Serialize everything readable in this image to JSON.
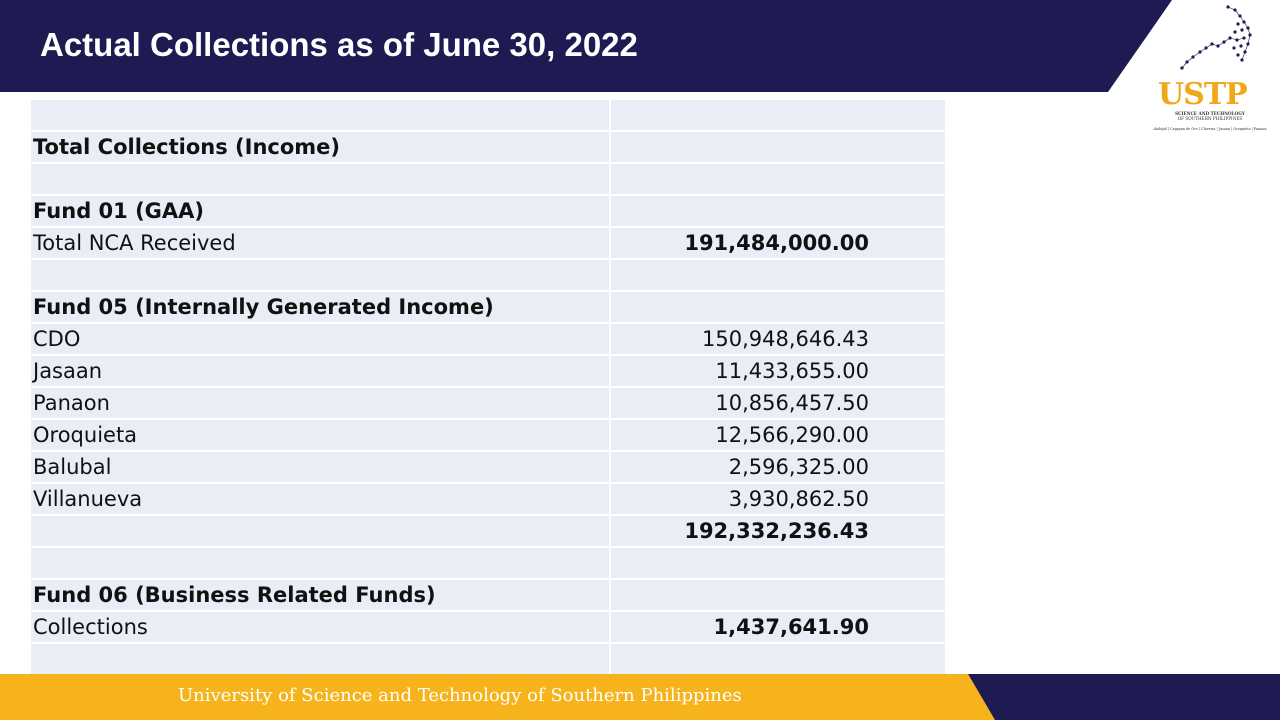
{
  "header": {
    "title": "Actual Collections as of June 30, 2022"
  },
  "logo": {
    "name": "USTP",
    "subtitle_line1": "UNIVERSITY OF",
    "subtitle_line2": "SCIENCE AND TECHNOLOGY",
    "subtitle_line3": "OF SOUTHERN PHILIPPINES",
    "campuses": "Alubijid | Cagayan de Oro | Claveria | Jasaan | Oroquieta | Panaon"
  },
  "table": {
    "rows": [
      {
        "label": "",
        "value": "",
        "bold": false
      },
      {
        "label": "Total Collections (Income)",
        "value": "",
        "bold": true
      },
      {
        "label": "",
        "value": "",
        "bold": false
      },
      {
        "label": "Fund 01 (GAA)",
        "value": "",
        "bold": true
      },
      {
        "label": "Total NCA Received",
        "value": "191,484,000.00",
        "bold": false,
        "value_bold": true
      },
      {
        "label": "",
        "value": "",
        "bold": false
      },
      {
        "label": "Fund 05 (Internally Generated Income)",
        "value": "",
        "bold": true
      },
      {
        "label": "CDO",
        "value": "150,948,646.43",
        "bold": false
      },
      {
        "label": "Jasaan",
        "value": "11,433,655.00",
        "bold": false
      },
      {
        "label": "Panaon",
        "value": "10,856,457.50",
        "bold": false
      },
      {
        "label": "Oroquieta",
        "value": "12,566,290.00",
        "bold": false
      },
      {
        "label": "Balubal",
        "value": "2,596,325.00",
        "bold": false
      },
      {
        "label": "Villanueva",
        "value": "3,930,862.50",
        "bold": false
      },
      {
        "label": "",
        "value": "192,332,236.43",
        "bold": false,
        "value_bold": true
      },
      {
        "label": "",
        "value": "",
        "bold": false
      },
      {
        "label": "Fund 06 (Business Related Funds)",
        "value": "",
        "bold": true
      },
      {
        "label": "Collections",
        "value": "1,437,641.90",
        "bold": false,
        "value_bold": true
      },
      {
        "label": "",
        "value": "",
        "bold": false
      }
    ]
  },
  "footer": {
    "text": "University of Science and Technology of Southern Philippines"
  },
  "colors": {
    "navy": "#1e1a52",
    "gold": "#f6b31b",
    "cell": "#e8edf6",
    "logo_gold": "#f0a81a"
  }
}
